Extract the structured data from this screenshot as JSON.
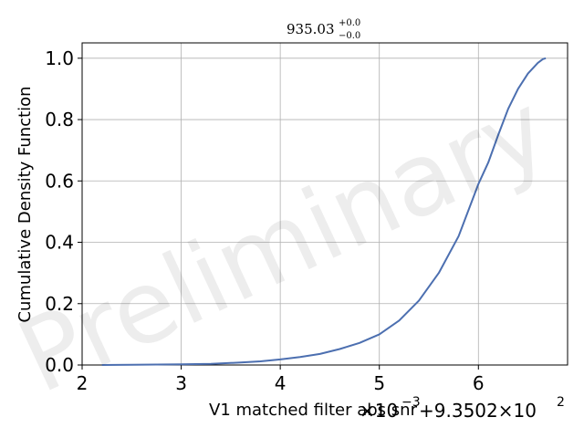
{
  "chart_data": {
    "type": "line",
    "title": {
      "value": "935.03",
      "upper": "+0.0",
      "lower": "−0.0"
    },
    "xlabel": "V1 matched filter abs snr",
    "ylabel": "Cumulative Density Function",
    "x_offset_text": {
      "scale_prefix": "×10",
      "scale_exp": "−3",
      "shift_prefix": "+9.3502×10",
      "shift_exp": "2"
    },
    "xlim": [
      2,
      6.9
    ],
    "ylim": [
      0,
      1.05
    ],
    "x_ticks": [
      2,
      3,
      4,
      5,
      6
    ],
    "x_tick_labels": [
      "2",
      "3",
      "4",
      "5",
      "6"
    ],
    "y_ticks": [
      0,
      0.2,
      0.4,
      0.6,
      0.8,
      1.0
    ],
    "y_tick_labels": [
      "0.0",
      "0.2",
      "0.4",
      "0.6",
      "0.8",
      "1.0"
    ],
    "grid": true,
    "series": [
      {
        "color": "#4c6fb0",
        "x": [
          2.2,
          2.5,
          3.0,
          3.3,
          3.6,
          3.8,
          4.0,
          4.2,
          4.4,
          4.6,
          4.8,
          5.0,
          5.2,
          5.4,
          5.6,
          5.8,
          6.0,
          6.1,
          6.2,
          6.3,
          6.4,
          6.5,
          6.6,
          6.65,
          6.68
        ],
        "y": [
          0.0,
          0.001,
          0.002,
          0.004,
          0.008,
          0.012,
          0.018,
          0.026,
          0.036,
          0.052,
          0.072,
          0.1,
          0.145,
          0.21,
          0.3,
          0.42,
          0.59,
          0.66,
          0.75,
          0.835,
          0.9,
          0.95,
          0.985,
          0.997,
          1.0
        ]
      }
    ]
  },
  "watermark": "Preliminary"
}
